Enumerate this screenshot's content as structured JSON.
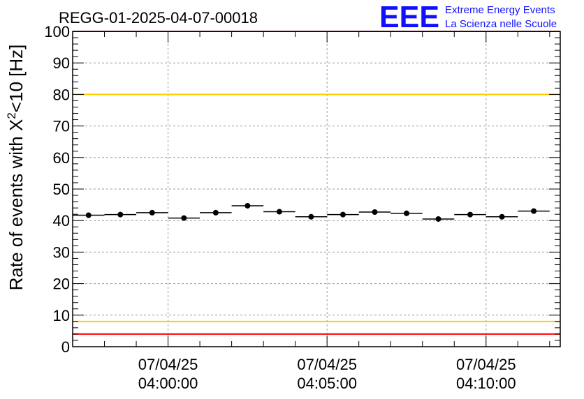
{
  "header": {
    "run_title": "REGG-01-2025-04-07-00018",
    "logo_text": "EEE",
    "logo_line1": "Extreme Energy Events",
    "logo_line2": "La Scienza nelle Scuole"
  },
  "colors": {
    "points": "#000000",
    "red_limit": "#ff0000",
    "yellow_limit": "#ffcc00",
    "logo": "#1010ff",
    "grid": "#9a9a9a"
  },
  "chart_data": {
    "type": "scatter",
    "title": "REGG-01-2025-04-07-00018",
    "ylabel": "Rate of events with X²<10 [Hz]",
    "ylabel_parts": {
      "pre": "Rate of events with X",
      "sup": "2",
      "post": "<10 [Hz]"
    },
    "xlabel": "",
    "ylim": [
      0,
      100
    ],
    "yticks": [
      0,
      10,
      20,
      30,
      40,
      50,
      60,
      70,
      80,
      90,
      100
    ],
    "xlim": [
      "03:57:00",
      "04:12:20"
    ],
    "xticks": [
      {
        "time": "04:00:00",
        "date": "07/04/25"
      },
      {
        "time": "04:05:00",
        "date": "07/04/25"
      },
      {
        "time": "04:10:00",
        "date": "07/04/25"
      }
    ],
    "grid": true,
    "bin_width_seconds": 60,
    "reference_lines": [
      {
        "value": 100,
        "color": "red"
      },
      {
        "value": 80,
        "color": "yellow"
      },
      {
        "value": 8,
        "color": "yellow"
      },
      {
        "value": 4,
        "color": "red"
      }
    ],
    "series": [
      {
        "points": [
          {
            "x": "03:57:30",
            "y": 41.7
          },
          {
            "x": "03:58:30",
            "y": 41.9
          },
          {
            "x": "03:59:30",
            "y": 42.5
          },
          {
            "x": "04:00:30",
            "y": 40.8
          },
          {
            "x": "04:01:30",
            "y": 42.5
          },
          {
            "x": "04:02:30",
            "y": 44.7
          },
          {
            "x": "04:03:30",
            "y": 42.8
          },
          {
            "x": "04:04:30",
            "y": 41.2
          },
          {
            "x": "04:05:30",
            "y": 41.9
          },
          {
            "x": "04:06:30",
            "y": 42.7
          },
          {
            "x": "04:07:30",
            "y": 42.3
          },
          {
            "x": "04:08:30",
            "y": 40.5
          },
          {
            "x": "04:09:30",
            "y": 41.9
          },
          {
            "x": "04:10:30",
            "y": 41.2
          },
          {
            "x": "04:11:30",
            "y": 43.0
          }
        ]
      }
    ]
  }
}
